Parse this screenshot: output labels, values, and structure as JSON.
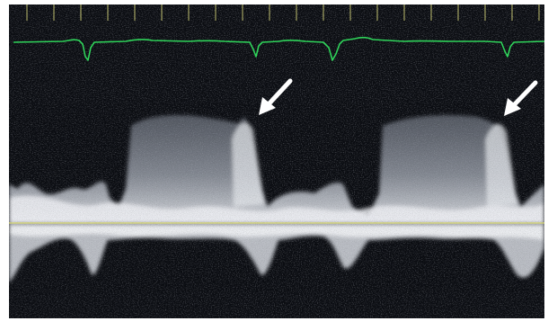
{
  "image": {
    "kind": "spectral-doppler-tracing",
    "colors": {
      "background": "#0b0d12",
      "ecg_trace": "#2fd35a",
      "baseline": "#d8d870",
      "timing_ticks": "#bfbf70",
      "spectral_signal": "#dfe3ea",
      "annotation_arrow": "#ffffff"
    },
    "annotations": [
      {
        "type": "arrow",
        "icon": "arrow-down-left-icon"
      },
      {
        "type": "arrow",
        "icon": "arrow-down-left-icon"
      }
    ]
  }
}
